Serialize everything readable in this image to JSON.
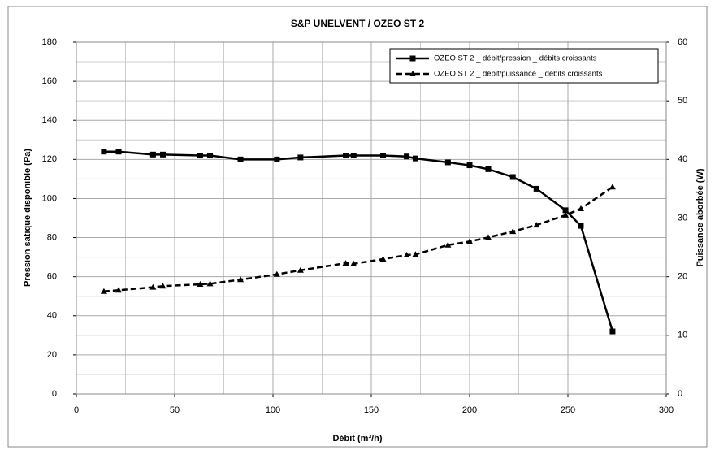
{
  "chart_data": {
    "type": "line",
    "title": "S&P UNELVENT / OZEO ST 2",
    "x_label": "Débit (m³/h)",
    "y_label": "Pression satique disponible (Pa)",
    "y2_label": "Puissance aborbée (W)",
    "x": [
      14,
      21.5,
      39,
      44,
      63,
      68,
      83.5,
      102,
      114,
      137,
      141,
      156,
      168,
      172.5,
      189,
      200,
      209.5,
      222,
      234,
      248.8,
      256.6,
      272.7
    ],
    "series": [
      {
        "name": "OZEO ST 2 _ débit/pression _ débits croissants",
        "color": "#000000",
        "marker": "square",
        "dash": false,
        "axis": "y",
        "values": [
          124,
          124,
          122.5,
          122.5,
          122,
          122,
          120,
          120,
          121,
          122,
          122,
          122,
          121.5,
          120.5,
          118.5,
          117,
          115,
          111,
          105,
          94,
          86,
          32
        ]
      },
      {
        "name": "OZEO ST 2 _ débit/puissance _ débits croissants",
        "color": "#000000",
        "marker": "triangle",
        "dash": true,
        "axis": "y2",
        "values": [
          17.5,
          17.7,
          18.2,
          18.4,
          18.7,
          18.8,
          19.5,
          20.4,
          21.1,
          22.3,
          22.2,
          23.0,
          23.7,
          23.8,
          25.4,
          26.0,
          26.7,
          27.7,
          28.8,
          30.5,
          31.6,
          35.3
        ]
      }
    ],
    "xlim": [
      0,
      300
    ],
    "xticks": [
      0,
      50,
      100,
      150,
      200,
      250,
      300
    ],
    "ylim": [
      0,
      180
    ],
    "yticks": [
      0,
      20,
      40,
      60,
      80,
      100,
      120,
      140,
      160,
      180
    ],
    "y2lim": [
      0,
      60
    ],
    "y2ticks": [
      0,
      10,
      20,
      30,
      40,
      50,
      60
    ],
    "grid": true,
    "legend": "upper right"
  }
}
